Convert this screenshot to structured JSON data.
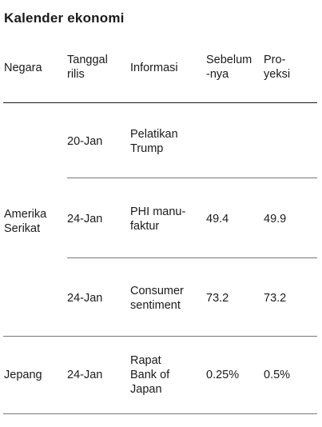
{
  "title": "Kalender ekonomi",
  "headers": {
    "negara": "Negara",
    "tanggal_1": "Tanggal",
    "tanggal_2": "rilis",
    "informasi": "Informasi",
    "sebelum_1": "Sebelum",
    "sebelum_2": "-nya",
    "proyeksi_1": "Pro-",
    "proyeksi_2": "yeksi"
  },
  "groups": [
    {
      "country_1": "Amerika",
      "country_2": "Serikat"
    },
    {
      "country_1": "Jepang"
    }
  ],
  "rows": [
    {
      "date": "20-Jan",
      "info_1": "Pelatikan",
      "info_2": "Trump",
      "previous": "",
      "projection": ""
    },
    {
      "date": "24-Jan",
      "info_1": "PHI manu-",
      "info_2": "faktur",
      "previous": "49.4",
      "projection": "49.9"
    },
    {
      "date": "24-Jan",
      "info_1": "Consumer",
      "info_2": "sentiment",
      "previous": "73.2",
      "projection": "73.2"
    },
    {
      "date": "24-Jan",
      "info_1": "Rapat",
      "info_2": "Bank of",
      "info_3": "Japan",
      "previous": "0.25%",
      "projection": "0.5%"
    }
  ]
}
